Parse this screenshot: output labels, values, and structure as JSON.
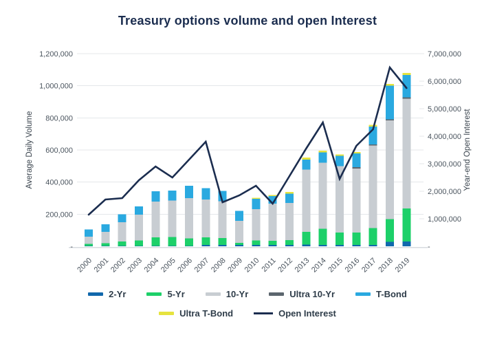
{
  "chart": {
    "title": "Treasury options volume and open Interest",
    "left_axis": {
      "label": "Average Daily Volume",
      "ticks": [
        {
          "value": 1200000,
          "label": "1,200,000"
        },
        {
          "value": 1000000,
          "label": "1,000,000"
        },
        {
          "value": 800000,
          "label": "800,000"
        },
        {
          "value": 600000,
          "label": "600,000"
        },
        {
          "value": 400000,
          "label": "400,000"
        },
        {
          "value": 200000,
          "label": "200,000"
        },
        {
          "value": 0,
          "label": "-"
        }
      ]
    },
    "right_axis": {
      "label": "Year-end Open Interest",
      "ticks": [
        {
          "value": 7000000,
          "label": "7,000,000"
        },
        {
          "value": 6000000,
          "label": "6,000,000"
        },
        {
          "value": 5000000,
          "label": "5,000,000"
        },
        {
          "value": 4000000,
          "label": "4,000,000"
        },
        {
          "value": 3000000,
          "label": "3,000,000"
        },
        {
          "value": 2000000,
          "label": "2,000,000"
        },
        {
          "value": 1000000,
          "label": "1,000,000"
        },
        {
          "value": 0,
          "label": "-"
        }
      ]
    }
  },
  "theme": {
    "title_color": "#1b2d4f",
    "grid_color": "#e4e7ea",
    "baseline_color": "#d7dbdf",
    "tick_text_color": "#4a545e",
    "legend_text_color": "#2e3c49"
  },
  "chart_data": {
    "type": "stacked-bar+line",
    "title": "Treasury options volume and open Interest",
    "ylabel_left": "Average Daily Volume",
    "ylabel_right": "Year-end Open Interest",
    "ylim_left": [
      0,
      1200000
    ],
    "ylim_right": [
      0,
      7000000
    ],
    "grid": "horizontal",
    "legend_position": "bottom",
    "categories": [
      "2000",
      "2001",
      "2002",
      "2003",
      "2004",
      "2005",
      "2006",
      "2007",
      "2008",
      "2009",
      "2010",
      "2011",
      "2012",
      "2013",
      "2014",
      "2015",
      "2016",
      "2017",
      "2018",
      "2019"
    ],
    "stack_series": [
      {
        "name": "2-Yr",
        "color": "#1168ac",
        "values": [
          2000,
          2000,
          2000,
          2000,
          3000,
          3000,
          3000,
          8000,
          8000,
          9000,
          9000,
          9000,
          9000,
          11000,
          9000,
          9000,
          9000,
          9000,
          27000,
          30000
        ]
      },
      {
        "name": "5-Yr",
        "color": "#1dd069",
        "values": [
          12000,
          18000,
          28000,
          35000,
          52000,
          55000,
          47000,
          47000,
          44000,
          12000,
          27000,
          26000,
          29000,
          80000,
          100000,
          76000,
          76000,
          104000,
          143000,
          205000
        ]
      },
      {
        "name": "10-Yr",
        "color": "#c8cdd2",
        "values": [
          45000,
          70000,
          120000,
          160000,
          223000,
          226000,
          251000,
          236000,
          229000,
          138000,
          196000,
          231000,
          233000,
          386000,
          411000,
          414000,
          399000,
          514000,
          615000,
          685000
        ]
      },
      {
        "name": "Ultra 10-Yr",
        "color": "#5c666e",
        "values": [
          0,
          0,
          0,
          0,
          0,
          0,
          0,
          0,
          0,
          0,
          0,
          0,
          0,
          0,
          0,
          0,
          8000,
          8000,
          6000,
          8000
        ]
      },
      {
        "name": "T-Bond",
        "color": "#2aa9e0",
        "values": [
          47000,
          48000,
          50000,
          52000,
          64000,
          64000,
          76000,
          72000,
          63000,
          61000,
          63000,
          46000,
          57000,
          64000,
          64000,
          64000,
          86000,
          110000,
          210000,
          140000
        ]
      },
      {
        "name": "Ultra T-Bond",
        "color": "#e6e33e",
        "values": [
          0,
          0,
          0,
          0,
          0,
          0,
          0,
          0,
          0,
          0,
          7000,
          8000,
          10000,
          11000,
          11000,
          10000,
          10000,
          11000,
          11000,
          13000
        ]
      }
    ],
    "line_series": {
      "name": "Open Interest",
      "color": "#1b2d4f",
      "values": [
        1150000,
        1700000,
        1750000,
        2400000,
        2900000,
        2500000,
        3150000,
        3800000,
        1600000,
        1850000,
        2200000,
        1550000,
        2550000,
        3550000,
        4500000,
        2450000,
        3650000,
        4250000,
        6500000,
        5750000
      ]
    }
  }
}
